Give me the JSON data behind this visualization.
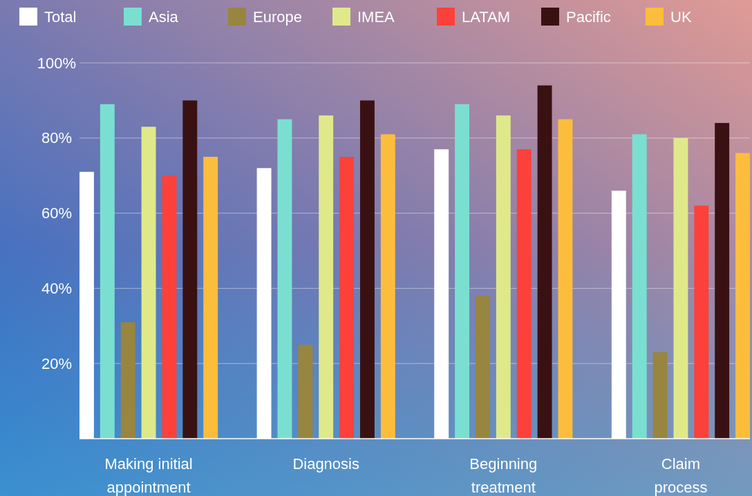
{
  "chart_data": {
    "type": "bar",
    "categories": [
      "Making initial appointment",
      "Diagnosis",
      "Beginning treatment",
      "Claim process"
    ],
    "series": [
      {
        "name": "Total",
        "color": "#ffffff",
        "values": [
          71,
          72,
          77,
          66
        ]
      },
      {
        "name": "Asia",
        "color": "#7adfd0",
        "values": [
          89,
          85,
          89,
          81
        ]
      },
      {
        "name": "Europe",
        "color": "#98853f",
        "values": [
          31,
          25,
          38,
          23
        ]
      },
      {
        "name": "IMEA",
        "color": "#dfe98a",
        "values": [
          83,
          86,
          86,
          80
        ]
      },
      {
        "name": "LATAM",
        "color": "#fc413b",
        "values": [
          70,
          75,
          77,
          62
        ]
      },
      {
        "name": "Pacific",
        "color": "#3a1113",
        "values": [
          90,
          90,
          94,
          84
        ]
      },
      {
        "name": "UK",
        "color": "#fdbd3c",
        "values": [
          75,
          81,
          85,
          76
        ]
      }
    ],
    "ylim": [
      0,
      100
    ],
    "yticks": [
      {
        "value": 20,
        "label": "20%"
      },
      {
        "value": 40,
        "label": "40%"
      },
      {
        "value": 60,
        "label": "60%"
      },
      {
        "value": 80,
        "label": "80%"
      },
      {
        "value": 100,
        "label": "100%"
      }
    ],
    "grid": "y",
    "legend": "top"
  }
}
